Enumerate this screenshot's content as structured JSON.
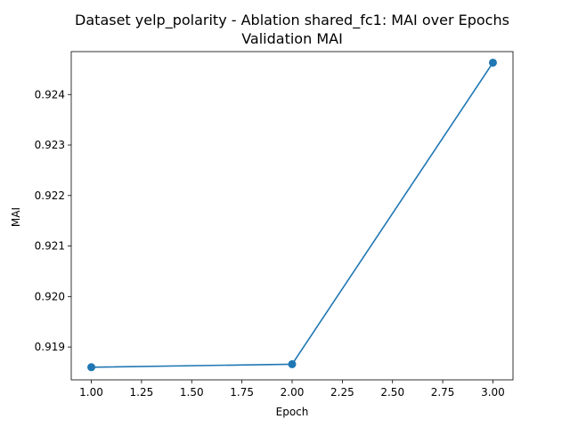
{
  "chart_data": {
    "type": "line",
    "title": "Dataset yelp_polarity - Ablation shared_fc1: MAI over Epochs",
    "subtitle": "Validation MAI",
    "xlabel": "Epoch",
    "ylabel": "MAI",
    "xlim": [
      0.9,
      3.1
    ],
    "ylim": [
      0.91835,
      0.92485
    ],
    "x_ticks": [
      1.0,
      1.25,
      1.5,
      1.75,
      2.0,
      2.25,
      2.5,
      2.75,
      3.0
    ],
    "x_tick_labels": [
      "1.00",
      "1.25",
      "1.50",
      "1.75",
      "2.00",
      "2.25",
      "2.50",
      "2.75",
      "3.00"
    ],
    "y_ticks": [
      0.919,
      0.92,
      0.921,
      0.922,
      0.923,
      0.924
    ],
    "y_tick_labels": [
      "0.919",
      "0.920",
      "0.921",
      "0.922",
      "0.923",
      "0.924"
    ],
    "grid": false,
    "legend": "none",
    "series": [
      {
        "x": [
          1,
          2,
          3
        ],
        "values": [
          0.9186,
          0.91866,
          0.92463
        ],
        "color": "#1f77b4",
        "marker": "circle"
      }
    ]
  }
}
